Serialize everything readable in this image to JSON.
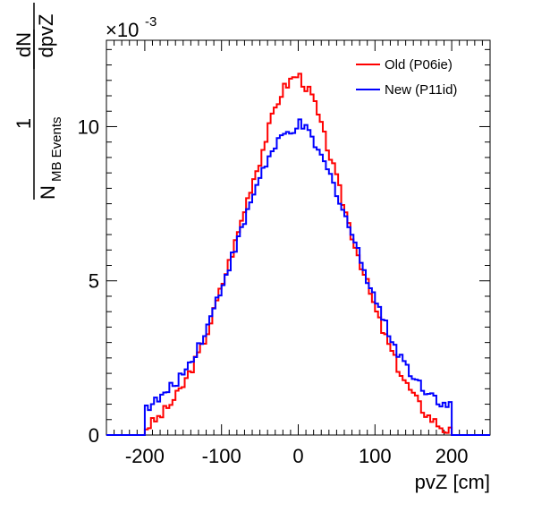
{
  "chart_data": {
    "type": "line",
    "title": "",
    "xlabel": "pvZ [cm]",
    "ylabel": {
      "numerator_top": "1",
      "denominator_main": "N",
      "denominator_sub": "MB Events",
      "fraction_top": "dN",
      "fraction_bottom": "dpvZ"
    },
    "y_exponent": "×10",
    "y_exponent_power": "-3",
    "xlim": [
      -250,
      250
    ],
    "ylim": [
      0,
      0.0128
    ],
    "x_ticks": [
      -200,
      -100,
      0,
      100,
      200
    ],
    "x_tick_labels": [
      "-200",
      "-100",
      "0",
      "100",
      "200"
    ],
    "y_ticks": [
      0,
      0.005,
      0.01
    ],
    "y_tick_labels": [
      "0",
      "5",
      "10"
    ],
    "grid": false,
    "legend_position": "top-right",
    "bin_width": 4,
    "colors": {
      "old": "#ff0000",
      "new": "#0000ff"
    },
    "series": [
      {
        "name": "Old (P06ie)",
        "color": "#ff0000",
        "x": [
          -200,
          -190,
          -180,
          -170,
          -160,
          -150,
          -140,
          -130,
          -120,
          -110,
          -100,
          -90,
          -80,
          -70,
          -60,
          -50,
          -40,
          -30,
          -20,
          -10,
          0,
          10,
          20,
          30,
          40,
          50,
          60,
          70,
          80,
          90,
          100,
          110,
          120,
          130,
          140,
          150,
          160,
          170,
          180,
          190,
          200
        ],
        "y": [
          0.0002,
          0.0004,
          0.0006,
          0.0009,
          0.0012,
          0.0016,
          0.0021,
          0.0026,
          0.0032,
          0.004,
          0.0048,
          0.0056,
          0.0064,
          0.0073,
          0.0082,
          0.0089,
          0.0098,
          0.0106,
          0.0112,
          0.0115,
          0.0117,
          0.0113,
          0.0109,
          0.01,
          0.0092,
          0.0083,
          0.0074,
          0.0065,
          0.0057,
          0.0049,
          0.0041,
          0.0034,
          0.0028,
          0.0022,
          0.0017,
          0.0013,
          0.0009,
          0.0006,
          0.0004,
          0.0002,
          0.0001
        ]
      },
      {
        "name": "New (P11id)",
        "color": "#0000ff",
        "x": [
          -200,
          -190,
          -180,
          -170,
          -160,
          -150,
          -140,
          -130,
          -120,
          -110,
          -100,
          -90,
          -80,
          -70,
          -60,
          -50,
          -40,
          -30,
          -20,
          -10,
          0,
          10,
          20,
          30,
          40,
          50,
          60,
          70,
          80,
          90,
          100,
          110,
          120,
          130,
          140,
          150,
          160,
          170,
          180,
          190,
          200
        ],
        "y": [
          0.0009,
          0.001,
          0.0012,
          0.0014,
          0.0017,
          0.002,
          0.0024,
          0.0029,
          0.0034,
          0.0041,
          0.0048,
          0.0055,
          0.0062,
          0.0069,
          0.0077,
          0.0084,
          0.0089,
          0.0093,
          0.0097,
          0.0098,
          0.0101,
          0.0099,
          0.0095,
          0.009,
          0.0085,
          0.0079,
          0.0072,
          0.0065,
          0.0058,
          0.0051,
          0.0045,
          0.0038,
          0.0032,
          0.0027,
          0.0023,
          0.0019,
          0.0016,
          0.0014,
          0.0012,
          0.001,
          0.0009
        ]
      }
    ]
  }
}
